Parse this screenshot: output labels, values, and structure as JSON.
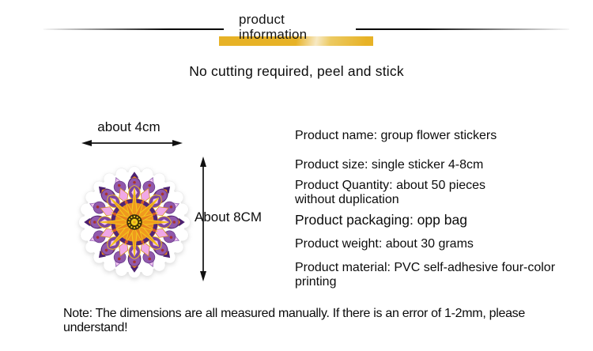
{
  "header": {
    "title_line1": "product",
    "title_line2": "information",
    "accent_color": "#e7b226"
  },
  "tagline": "No cutting required, peel and stick",
  "figure": {
    "width_label": "about 4cm",
    "height_label": "About 8CM",
    "sticker": "mandala-flower-sticker",
    "colors": {
      "orange": "#e8831f",
      "purple": "#8b56a8",
      "dark_purple": "#4b2070",
      "pink": "#f0a8e6",
      "pale_pink": "#f6ccf2",
      "yellow": "#f2c81e",
      "maroon": "#a83430"
    }
  },
  "specs": [
    "Product name: group flower stickers",
    "Product size: single sticker 4-8cm",
    "Product Quantity: about 50 pieces without duplication",
    "Product packaging: opp bag",
    "Product weight: about 30 grams",
    "Product material: PVC self-adhesive four-color printing"
  ],
  "note": "Note: The dimensions are all measured manually. If there is an error of 1-2mm, please understand!"
}
